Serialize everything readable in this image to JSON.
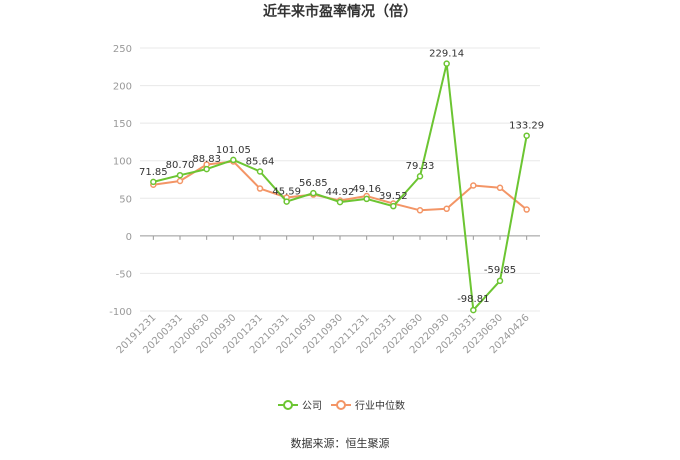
{
  "chart_data": {
    "type": "line",
    "title": "近年来市盈率情况（倍）",
    "categories": [
      "20191231",
      "20200331",
      "20200630",
      "20200930",
      "20201231",
      "20210331",
      "20210630",
      "20210930",
      "20211231",
      "20220331",
      "20220630",
      "20220930",
      "20230331",
      "20230630",
      "20240426"
    ],
    "series": [
      {
        "name": "公司",
        "color": "#6cc532",
        "values": [
          71.85,
          80.7,
          88.83,
          101.05,
          85.64,
          45.59,
          56.85,
          44.92,
          49.16,
          39.52,
          79.33,
          229.14,
          -98.81,
          -59.85,
          133.29
        ],
        "labels": [
          "71.85",
          "80.70",
          "88.83",
          "101.05",
          "85.64",
          "45.59",
          "56.85",
          "44.92",
          "49.16",
          "39.52",
          "79.33",
          "229.14",
          "-98.81",
          "-59.85",
          "133.29"
        ]
      },
      {
        "name": "行业中位数",
        "color": "#f39566",
        "values": [
          68,
          73,
          95,
          99,
          63,
          51,
          55,
          47,
          53,
          43,
          34,
          36,
          67,
          64,
          35
        ]
      }
    ],
    "yticks": [
      "250",
      "200",
      "150",
      "100",
      "50",
      "0",
      "-50",
      "-100"
    ],
    "ylim": [
      -100,
      250
    ],
    "grid": true,
    "legend_position": "bottom-center"
  },
  "source_text": "数据来源：恒生聚源"
}
